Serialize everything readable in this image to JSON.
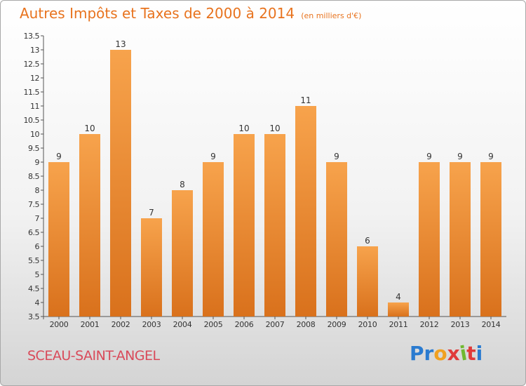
{
  "header": {
    "title": "Autres Impôts et Taxes de 2000 à 2014",
    "unit": "(en milliers d'€)"
  },
  "footer": {
    "commune": "SCEAU-SAINT-ANGEL",
    "brand": "Proxiti",
    "brand_colors": [
      "#2a7bd0",
      "#2a7bd0",
      "#f0a020",
      "#e03a3a",
      "#70b830",
      "#e03a3a",
      "#2a7bd0"
    ]
  },
  "colors": {
    "bar_light": "#f7a34c",
    "bar_dark": "#d9711c",
    "accent": "#e8731e",
    "commune": "#d94a5a"
  },
  "chart_data": {
    "type": "bar",
    "categories": [
      "2000",
      "2001",
      "2002",
      "2003",
      "2004",
      "2005",
      "2006",
      "2007",
      "2008",
      "2009",
      "2010",
      "2011",
      "2012",
      "2013",
      "2014"
    ],
    "values": [
      9,
      10,
      13,
      7,
      8,
      9,
      10,
      10,
      11,
      9,
      6,
      4,
      9,
      9,
      9
    ],
    "ylim": [
      3.5,
      13.5
    ],
    "yticks": [
      "3.5",
      "4",
      "4.5",
      "5",
      "5.5",
      "6",
      "6.5",
      "7",
      "7.5",
      "8",
      "8.5",
      "9",
      "9.5",
      "10",
      "10.5",
      "11",
      "11.5",
      "12",
      "12.5",
      "13",
      "13.5"
    ],
    "grid": false,
    "data_labels": true
  }
}
